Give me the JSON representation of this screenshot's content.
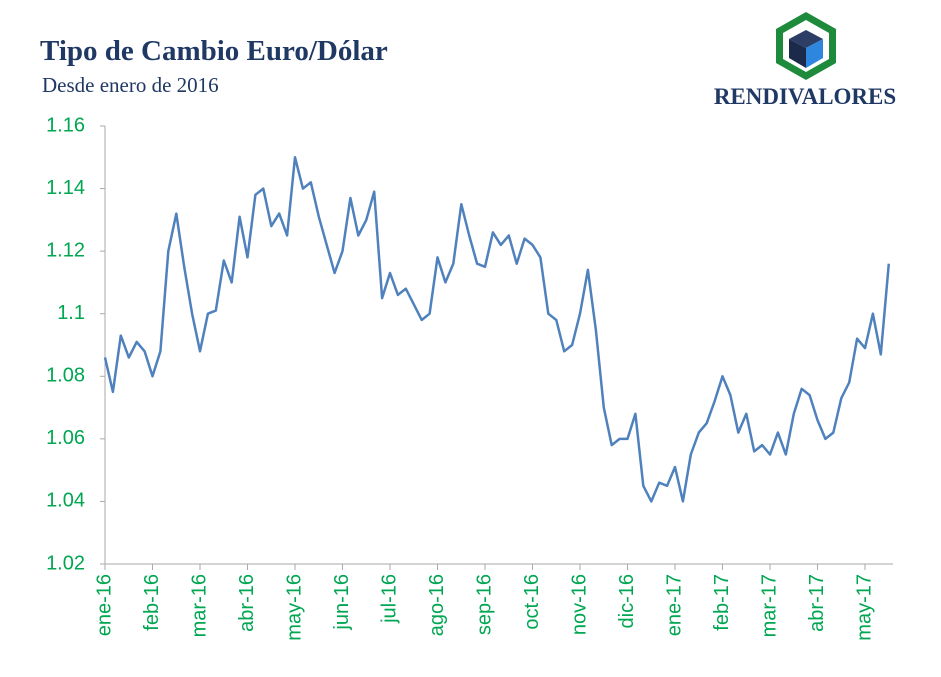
{
  "chart_data": {
    "type": "line",
    "title": "Tipo de Cambio Euro/Dólar",
    "subtitle": "Desde enero de 2016",
    "logo": "RENDIVALORES",
    "color": "#4f81bd",
    "categories": [
      "ene-16",
      null,
      null,
      null,
      null,
      null,
      "feb-16",
      null,
      null,
      null,
      null,
      null,
      "mar-16",
      null,
      null,
      null,
      null,
      null,
      "abr-16",
      null,
      null,
      null,
      null,
      null,
      "may-16",
      null,
      null,
      null,
      null,
      null,
      "jun-16",
      null,
      null,
      null,
      null,
      null,
      "jul-16",
      null,
      null,
      null,
      null,
      null,
      "ago-16",
      null,
      null,
      null,
      null,
      null,
      "sep-16",
      null,
      null,
      null,
      null,
      null,
      "oct-16",
      null,
      null,
      null,
      null,
      null,
      "nov-16",
      null,
      null,
      null,
      null,
      null,
      "dic-16",
      null,
      null,
      null,
      null,
      null,
      "ene-17",
      null,
      null,
      null,
      null,
      null,
      "feb-17",
      null,
      null,
      null,
      null,
      null,
      "mar-17",
      null,
      null,
      null,
      null,
      null,
      "abr-17",
      null,
      null,
      null,
      null,
      null,
      "may-17",
      null,
      null,
      null
    ],
    "values": [
      1.086,
      1.075,
      1.093,
      1.086,
      1.091,
      1.088,
      1.08,
      1.088,
      1.12,
      1.132,
      1.115,
      1.1,
      1.088,
      1.1,
      1.101,
      1.117,
      1.11,
      1.131,
      1.118,
      1.138,
      1.14,
      1.128,
      1.132,
      1.125,
      1.15,
      1.14,
      1.142,
      1.131,
      1.122,
      1.113,
      1.12,
      1.137,
      1.125,
      1.13,
      1.139,
      1.105,
      1.113,
      1.106,
      1.108,
      1.103,
      1.098,
      1.1,
      1.118,
      1.11,
      1.116,
      1.135,
      1.125,
      1.116,
      1.115,
      1.126,
      1.122,
      1.125,
      1.116,
      1.124,
      1.122,
      1.118,
      1.1,
      1.098,
      1.088,
      1.09,
      1.1,
      1.114,
      1.095,
      1.07,
      1.058,
      1.06,
      1.06,
      1.068,
      1.045,
      1.04,
      1.046,
      1.045,
      1.051,
      1.04,
      1.055,
      1.062,
      1.065,
      1.072,
      1.08,
      1.074,
      1.062,
      1.068,
      1.056,
      1.058,
      1.055,
      1.062,
      1.055,
      1.068,
      1.076,
      1.074,
      1.066,
      1.06,
      1.062,
      1.073,
      1.078,
      1.092,
      1.089,
      1.1,
      1.087,
      1.116
    ],
    "ylim": [
      1.02,
      1.16
    ],
    "yticks": [
      1.02,
      1.04,
      1.06,
      1.08,
      1.1,
      1.12,
      1.14,
      1.16
    ]
  }
}
